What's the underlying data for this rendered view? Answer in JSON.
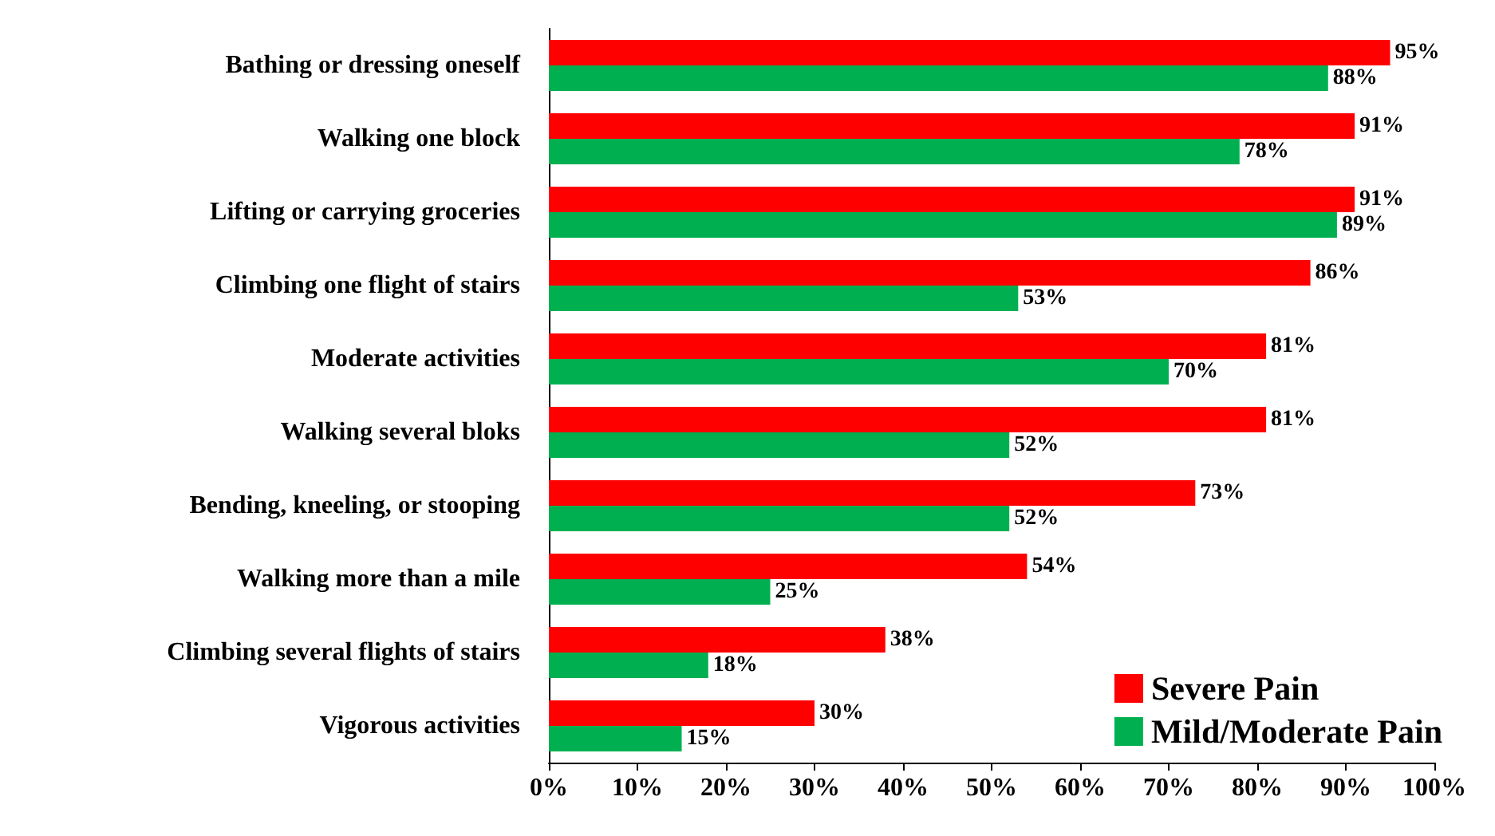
{
  "chart_data": {
    "type": "bar",
    "orientation": "horizontal",
    "categories": [
      "Bathing or dressing oneself",
      "Walking one block",
      "Lifting or carrying groceries",
      "Climbing one flight of stairs",
      "Moderate activities",
      "Walking several bloks",
      "Bending, kneeling, or stooping",
      "Walking more than a mile",
      "Climbing several flights of stairs",
      "Vigorous activities"
    ],
    "series": [
      {
        "name": "Severe Pain",
        "color": "#ff0000",
        "values": [
          95,
          91,
          91,
          86,
          81,
          81,
          73,
          54,
          38,
          30
        ],
        "value_labels": [
          "95%",
          "91%",
          "91%",
          "86%",
          "81%",
          "81%",
          "73%",
          "54%",
          "38%",
          "30%"
        ]
      },
      {
        "name": "Mild/Moderate Pain",
        "color": "#00b050",
        "values": [
          88,
          78,
          89,
          53,
          70,
          52,
          52,
          25,
          18,
          15
        ],
        "value_labels": [
          "88%",
          "78%",
          "89%",
          "53%",
          "70%",
          "52%",
          "52%",
          "25%",
          "18%",
          "15%"
        ]
      }
    ],
    "xlim": [
      0,
      100
    ],
    "xticks": [
      {
        "value": 0,
        "label": "0%"
      },
      {
        "value": 10,
        "label": "10%"
      },
      {
        "value": 20,
        "label": "20%"
      },
      {
        "value": 30,
        "label": "30%"
      },
      {
        "value": 40,
        "label": "40%"
      },
      {
        "value": 50,
        "label": "50%"
      },
      {
        "value": 60,
        "label": "60%"
      },
      {
        "value": 70,
        "label": "70%"
      },
      {
        "value": 80,
        "label": "80%"
      },
      {
        "value": 90,
        "label": "90%"
      },
      {
        "value": 100,
        "label": "100%"
      }
    ],
    "grid": false,
    "legend": "bottom right"
  }
}
